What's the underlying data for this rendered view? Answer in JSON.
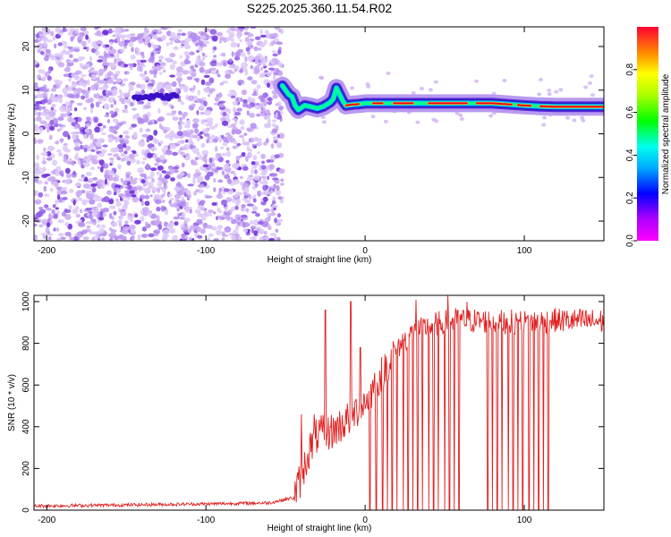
{
  "title": "S225.2025.360.11.54.R02",
  "colors": {
    "snr_line": "#e02020",
    "ridge_outline": "#2020c0",
    "scatter": [
      "#dcc8f8",
      "#c9a8f2",
      "#b088ee",
      "#8f5ae6",
      "#6a28d8"
    ]
  },
  "chart_data": [
    {
      "type": "heatmap",
      "title": "S225.2025.360.11.54.R02",
      "xlabel": "Height of straight line (km)",
      "ylabel": "Frequency (Hz)",
      "xlim": [
        -208,
        150
      ],
      "ylim": [
        -24.5,
        24.5
      ],
      "xticks": [
        -200,
        -100,
        0,
        100
      ],
      "yticks": [
        -20,
        -10,
        0,
        10,
        20
      ],
      "colorbar": {
        "label": "Normalized spectral amplitude",
        "range": [
          0,
          1
        ],
        "ticks": [
          0.0,
          0.2,
          0.4,
          0.6,
          0.8
        ],
        "tick_labels": [
          "0.0",
          "0.2",
          "0.4",
          "0.6",
          "0.8"
        ]
      },
      "noise_region": {
        "x": [
          -208,
          -52
        ],
        "freq": [
          -24.5,
          24.5
        ]
      },
      "ridge": {
        "x": [
          -52,
          -48,
          -46,
          -44,
          -42,
          -38,
          -34,
          -30,
          -26,
          -22,
          -20,
          -18,
          -16,
          -14,
          -12,
          -8,
          -4,
          0,
          20,
          40,
          60,
          80,
          100,
          110,
          120,
          150
        ],
        "freq": [
          11,
          9,
          8.5,
          6.5,
          5.5,
          6.5,
          6.2,
          5.8,
          6.3,
          7.2,
          8,
          10.5,
          9,
          7.5,
          6.5,
          6.7,
          6.8,
          7,
          7,
          7,
          7,
          7,
          6.5,
          6.3,
          6.2,
          6.2
        ]
      },
      "low_freq_band": {
        "x": [
          -145,
          -118
        ],
        "freq": 8.5
      }
    },
    {
      "type": "line",
      "xlabel": "Height of straight line (km)",
      "ylabel": "SNR (10 * v/v)",
      "xlim": [
        -208,
        150
      ],
      "ylim": [
        0,
        1030
      ],
      "xticks": [
        -200,
        -100,
        0,
        100
      ],
      "yticks": [
        0,
        200,
        400,
        600,
        800,
        1000
      ],
      "envelope": {
        "x": [
          -208,
          -150,
          -100,
          -60,
          -45,
          -40,
          -35,
          -30,
          -20,
          -10,
          0,
          10,
          20,
          30,
          40,
          50,
          60,
          80,
          100,
          120,
          150
        ],
        "y": [
          20,
          25,
          30,
          35,
          60,
          160,
          290,
          360,
          380,
          440,
          520,
          650,
          780,
          850,
          880,
          905,
          910,
          905,
          900,
          910,
          905
        ]
      },
      "spikes": [
        {
          "x": -40,
          "y": 460
        },
        {
          "x": -32,
          "y": 460
        },
        {
          "x": -25,
          "y": 960
        },
        {
          "x": -9,
          "y": 1000
        },
        {
          "x": -3,
          "y": 780
        },
        {
          "x": 32,
          "y": 1010
        },
        {
          "x": 52,
          "y": 1030
        },
        {
          "x": 64,
          "y": 1000
        }
      ],
      "dropouts": {
        "x": [
          3,
          7,
          11,
          14,
          17,
          20,
          24,
          27,
          30,
          33,
          36,
          40,
          43,
          46,
          50,
          53,
          56,
          59,
          77,
          80,
          83,
          86,
          90,
          93,
          96,
          99,
          103,
          106,
          109,
          112,
          115
        ],
        "y": 0
      }
    }
  ]
}
